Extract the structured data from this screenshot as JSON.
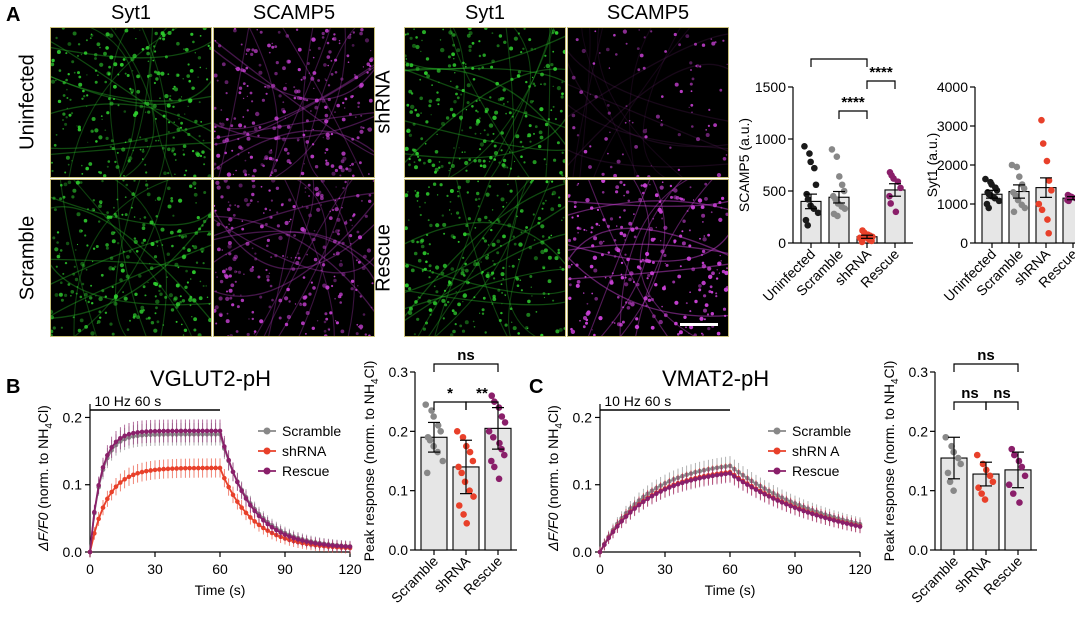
{
  "panels": {
    "a": {
      "letter": "A",
      "micrographs": {
        "channel_headers": [
          "Syt1",
          "SCAMP5"
        ],
        "left_rows": [
          "Uninfected",
          "Scramble"
        ],
        "right_rows": [
          "shRNA",
          "Rescue"
        ],
        "colors": {
          "syt1": "#2fd12f",
          "scamp5": "#c43fd0"
        }
      }
    },
    "b": {
      "letter": "B",
      "trace_title": "VGLUT2-pH"
    },
    "c": {
      "letter": "C",
      "trace_title": "VMAT2-pH"
    }
  },
  "colors": {
    "scramble": "#888888",
    "shrna": "#e8402a",
    "rescue": "#8a1f6a",
    "black": "#1a1a1a",
    "bar_fill": "#e6e6e6"
  },
  "chart_data": [
    {
      "id": "scamp5_bars",
      "type": "bar",
      "categories": [
        "Uninfected",
        "Scramble",
        "shRNA",
        "Rescue"
      ],
      "values": [
        400,
        440,
        60,
        510
      ],
      "errors": [
        70,
        55,
        15,
        60
      ],
      "ylabel": "SCAMP5 (a.u.)",
      "ylim": [
        0,
        1500
      ],
      "yticks": [
        "0",
        "500",
        "1000",
        "1500"
      ],
      "significance": [
        {
          "pair": [
            0,
            2
          ],
          "label": "****"
        },
        {
          "pair": [
            2,
            3
          ],
          "label": "****"
        },
        {
          "pair": [
            1,
            2
          ],
          "label": "****"
        }
      ],
      "points": [
        [
          930,
          860,
          780,
          720,
          560,
          470,
          420,
          360,
          330,
          290,
          220,
          170
        ],
        [
          900,
          830,
          640,
          560,
          500,
          450,
          420,
          380,
          350,
          330,
          280,
          260
        ],
        [
          120,
          100,
          80,
          70,
          60,
          50,
          45,
          40,
          30,
          20,
          10
        ],
        [
          680,
          650,
          620,
          590,
          530,
          450,
          380,
          300
        ]
      ]
    },
    {
      "id": "syt1_bars",
      "type": "bar",
      "categories": [
        "Uninfected",
        "Scramble",
        "shRNA",
        "Rescue"
      ],
      "values": [
        1250,
        1320,
        1420,
        1150
      ],
      "errors": [
        100,
        170,
        250,
        40
      ],
      "ylabel": "Syt1 (a.u.)",
      "ylim": [
        0,
        4000
      ],
      "yticks": [
        "0",
        "1000",
        "2000",
        "3000",
        "4000"
      ],
      "points": [
        [
          1640,
          1560,
          1500,
          1420,
          1350,
          1300,
          1250,
          1200,
          1150,
          1080,
          1000,
          900
        ],
        [
          2000,
          1950,
          1700,
          1500,
          1400,
          1300,
          1220,
          1100,
          980,
          900,
          800
        ],
        [
          3150,
          2550,
          2100,
          1600,
          1350,
          1000,
          850,
          600,
          250
        ],
        [
          1230,
          1200,
          1180,
          1150,
          1130,
          1100,
          1080
        ]
      ]
    },
    {
      "id": "vglut2_trace",
      "type": "line",
      "title": "VGLUT2-pH",
      "xlabel": "Time (s)",
      "ylabel": "ΔF/F0 (norm. to NH4Cl)",
      "xlim": [
        0,
        120
      ],
      "ylim": [
        0,
        0.22
      ],
      "xticks": [
        "0",
        "30",
        "60",
        "90",
        "120"
      ],
      "yticks": [
        "0.0",
        "0.1",
        "0.2"
      ],
      "stim_label": "10 Hz 60 s",
      "stim_range": [
        0,
        60
      ],
      "series": [
        {
          "name": "Scramble",
          "color": "#888888",
          "plateau": 0.175,
          "tau": 5,
          "decay": 15
        },
        {
          "name": "shRNA",
          "color": "#e8402a",
          "plateau": 0.125,
          "tau": 8,
          "decay": 15
        },
        {
          "name": "Rescue",
          "color": "#8a1f6a",
          "plateau": 0.18,
          "tau": 5,
          "decay": 14
        }
      ]
    },
    {
      "id": "vglut2_peak",
      "type": "bar",
      "categories": [
        "Scramble",
        "shRNA",
        "Rescue"
      ],
      "values": [
        0.19,
        0.14,
        0.205
      ],
      "errors": [
        0.025,
        0.045,
        0.035
      ],
      "ylabel": "Peak response (norm. to NH4Cl)",
      "ylim": [
        0,
        0.3
      ],
      "yticks": [
        "0.0",
        "0.1",
        "0.2",
        "0.3"
      ],
      "significance": [
        {
          "pair": [
            0,
            2
          ],
          "label": "ns"
        },
        {
          "pair": [
            0,
            1
          ],
          "label": "*"
        },
        {
          "pair": [
            1,
            2
          ],
          "label": "**"
        }
      ],
      "points": [
        [
          0.245,
          0.235,
          0.225,
          0.21,
          0.2,
          0.19,
          0.185,
          0.175,
          0.165,
          0.15,
          0.13
        ],
        [
          0.2,
          0.19,
          0.175,
          0.165,
          0.15,
          0.14,
          0.13,
          0.115,
          0.1,
          0.09,
          0.075,
          0.06,
          0.045
        ],
        [
          0.26,
          0.25,
          0.24,
          0.225,
          0.215,
          0.2,
          0.19,
          0.18,
          0.17,
          0.16,
          0.15,
          0.14,
          0.12
        ]
      ]
    },
    {
      "id": "vmat2_trace",
      "type": "line",
      "title": "VMAT2-pH",
      "xlabel": "Time (s)",
      "ylabel": "ΔF/F0 (norm. to NH4Cl)",
      "xlim": [
        0,
        120
      ],
      "ylim": [
        0,
        0.22
      ],
      "xticks": [
        "0",
        "30",
        "60",
        "90",
        "120"
      ],
      "yticks": [
        "0.0",
        "0.1",
        "0.2"
      ],
      "stim_label": "10 Hz 60 s",
      "stim_range": [
        0,
        60
      ],
      "series": [
        {
          "name": "Scramble",
          "color": "#888888",
          "plateau": 0.137,
          "tau": 22,
          "decay": 50
        },
        {
          "name": "shRNA",
          "color": "#e8402a",
          "plateau": 0.127,
          "tau": 22,
          "decay": 50
        },
        {
          "name": "Rescue",
          "color": "#8a1f6a",
          "plateau": 0.125,
          "tau": 22,
          "decay": 50
        }
      ],
      "legend_labels": [
        "Scramble",
        "shRN A",
        "Rescue"
      ]
    },
    {
      "id": "vmat2_peak",
      "type": "bar",
      "categories": [
        "Scramble",
        "shRNA",
        "Rescue"
      ],
      "values": [
        0.155,
        0.128,
        0.135
      ],
      "errors": [
        0.035,
        0.02,
        0.03
      ],
      "ylabel": "Peak response (norm. to NH4Cl)",
      "ylim": [
        0,
        0.3
      ],
      "yticks": [
        "0.0",
        "0.1",
        "0.2",
        "0.3"
      ],
      "significance": [
        {
          "pair": [
            0,
            2
          ],
          "label": "ns"
        },
        {
          "pair": [
            0,
            1
          ],
          "label": "ns"
        },
        {
          "pair": [
            1,
            2
          ],
          "label": "ns"
        }
      ],
      "points": [
        [
          0.19,
          0.175,
          0.165,
          0.155,
          0.145,
          0.13,
          0.115,
          0.1
        ],
        [
          0.16,
          0.145,
          0.135,
          0.125,
          0.115,
          0.105,
          0.095,
          0.085
        ],
        [
          0.17,
          0.16,
          0.15,
          0.14,
          0.125,
          0.11,
          0.095,
          0.08
        ]
      ]
    }
  ]
}
